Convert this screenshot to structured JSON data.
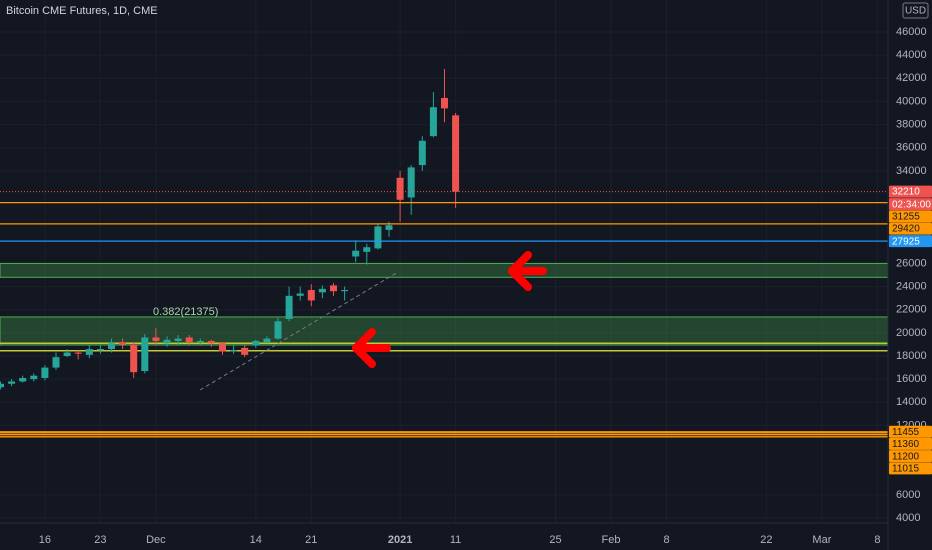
{
  "chart_data": {
    "type": "candlestick",
    "title": "Bitcoin CME Futures, 1D, CME",
    "currency": "USD",
    "up_color": "#26a69a",
    "down_color": "#ef5350",
    "categories": [
      null,
      null,
      null,
      null,
      "16",
      null,
      null,
      null,
      null,
      "23",
      null,
      null,
      null,
      null,
      "Dec",
      null,
      null,
      null,
      null,
      null,
      null,
      null,
      null,
      "14",
      null,
      null,
      null,
      null,
      "21",
      null,
      null,
      null,
      null,
      null,
      null,
      null,
      "2021",
      null,
      null,
      null,
      null,
      "11",
      null,
      null,
      null,
      null,
      null,
      null,
      null,
      null,
      "25",
      null,
      null,
      null,
      null,
      "Feb",
      null,
      null,
      null,
      null,
      "8",
      null,
      null,
      null,
      null,
      null,
      null,
      null,
      null,
      "22",
      null,
      null,
      null,
      null,
      "Mar",
      null,
      null,
      null,
      null,
      "8"
    ],
    "open": [
      15300,
      15600,
      15800,
      16000,
      16100,
      17000,
      18000,
      18300,
      18100,
      18500,
      18600,
      19200,
      19000,
      16700,
      19600,
      19100,
      19300,
      19600,
      19200,
      19300,
      19100,
      18400,
      18700,
      18900,
      19200,
      19500,
      21200,
      23200,
      23700,
      23500,
      24100,
      23600,
      26600,
      27000,
      27300,
      28900,
      33400,
      31700,
      34500,
      37000,
      40300,
      38800,
      null,
      null,
      null,
      null,
      null,
      null,
      null,
      null,
      null,
      null,
      null,
      null,
      null,
      null,
      null,
      null,
      null,
      null,
      null,
      null,
      null,
      null,
      null,
      null,
      null,
      null,
      null,
      null,
      null,
      null,
      null,
      null,
      null,
      null,
      null,
      null,
      null,
      null
    ],
    "high": [
      15800,
      16000,
      16300,
      16500,
      17200,
      18300,
      18600,
      18500,
      18900,
      19000,
      19500,
      19500,
      19200,
      19900,
      20400,
      19700,
      19800,
      19800,
      19500,
      19400,
      19200,
      18900,
      19000,
      19400,
      19700,
      21300,
      24000,
      24000,
      24200,
      24100,
      24300,
      24000,
      28000,
      27700,
      29400,
      29600,
      34000,
      34500,
      37000,
      40800,
      42800,
      39000,
      null,
      null,
      null,
      null,
      null,
      null,
      null,
      null,
      null,
      null,
      null,
      null,
      null,
      null,
      null,
      null,
      null,
      null,
      null,
      null,
      null,
      null,
      null,
      null,
      null,
      null,
      null,
      null,
      null,
      null,
      null,
      null,
      null,
      null,
      null,
      null,
      null,
      null
    ],
    "low": [
      15100,
      15400,
      15700,
      15800,
      15900,
      16800,
      17900,
      17700,
      17800,
      18200,
      18300,
      18600,
      16100,
      16500,
      18900,
      18800,
      19000,
      18900,
      18900,
      18800,
      18100,
      18200,
      17900,
      18700,
      19100,
      19400,
      21000,
      22800,
      22300,
      23000,
      23200,
      22800,
      26100,
      25900,
      27200,
      28300,
      29600,
      30200,
      34000,
      36900,
      38200,
      30800,
      null,
      null,
      null,
      null,
      null,
      null,
      null,
      null,
      null,
      null,
      null,
      null,
      null,
      null,
      null,
      null,
      null,
      null,
      null,
      null,
      null,
      null,
      null,
      null,
      null,
      null,
      null,
      null,
      null,
      null,
      null,
      null,
      null,
      null,
      null,
      null,
      null,
      null
    ],
    "close": [
      15600,
      15800,
      16100,
      16300,
      17000,
      17900,
      18300,
      18200,
      18600,
      18600,
      19100,
      19000,
      16600,
      19600,
      19300,
      19400,
      19500,
      19200,
      19300,
      19100,
      18400,
      18500,
      18100,
      19300,
      19500,
      21000,
      23200,
      23400,
      22800,
      23800,
      23600,
      23700,
      27100,
      27400,
      29200,
      29300,
      31500,
      34300,
      36600,
      39500,
      39400,
      32200,
      null,
      null,
      null,
      null,
      null,
      null,
      null,
      null,
      null,
      null,
      null,
      null,
      null,
      null,
      null,
      null,
      null,
      null,
      null,
      null,
      null,
      null,
      null,
      null,
      null,
      null,
      null,
      null,
      null,
      null,
      null,
      null,
      null,
      null,
      null,
      null,
      null,
      null
    ],
    "ylim": [
      3568,
      48765
    ],
    "yticks": [
      4000,
      6000,
      12000,
      14000,
      16000,
      18000,
      20000,
      22000,
      24000,
      26000,
      34000,
      36000,
      38000,
      40000,
      42000,
      44000,
      46000
    ],
    "grid": true,
    "countdown": "02:34:00",
    "levels": [
      {
        "value": 32210,
        "color": "#ef5350",
        "style": "dotted"
      },
      {
        "value": 31255,
        "color": "#ff9800",
        "style": "solid"
      },
      {
        "value": 29420,
        "color": "#ff9800",
        "style": "solid"
      },
      {
        "value": 27925,
        "color": "#2196f3",
        "style": "solid"
      },
      {
        "value": 11455,
        "color": "#ff9800",
        "style": "solid"
      },
      {
        "value": 11360,
        "color": "#ff9800",
        "style": "solid"
      },
      {
        "value": 11200,
        "color": "#ff9800",
        "style": "solid"
      },
      {
        "value": 11015,
        "color": "#ff9800",
        "style": "solid"
      }
    ],
    "lines": [
      {
        "value": 19100,
        "color": "#c0ca33"
      },
      {
        "value": 18450,
        "color": "#c0ca33"
      }
    ],
    "zones": [
      {
        "from": 24800,
        "to": 26000,
        "color": "#4caf50"
      },
      {
        "from": 18950,
        "to": 21375,
        "color": "#4caf50"
      }
    ],
    "annotation": "0.382(21375)"
  }
}
